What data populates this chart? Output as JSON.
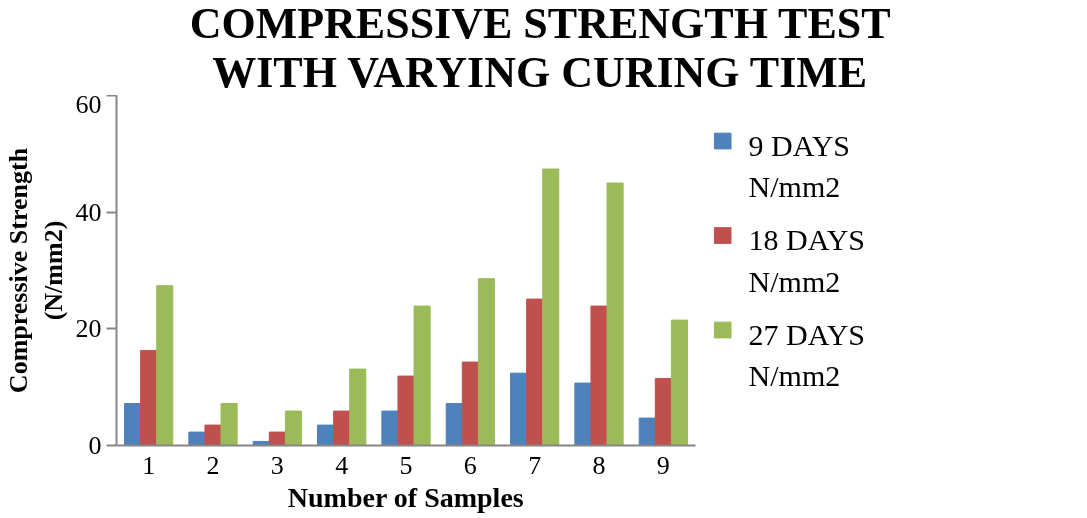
{
  "chart_data": {
    "type": "bar",
    "title": "COMPRESSIVE STRENGTH TEST WITH VARYING CURING TIME",
    "xlabel": "Number of Samples",
    "ylabel": "Compressive Strength (N/mm2)",
    "categories": [
      "1",
      "2",
      "3",
      "4",
      "5",
      "6",
      "7",
      "8",
      "9"
    ],
    "series": [
      {
        "name": "9 DAYS N/mm2",
        "color": "#4f81bd",
        "values": [
          7.2,
          2.3,
          0.7,
          3.5,
          5.9,
          7.2,
          12.4,
          10.7,
          4.7
        ]
      },
      {
        "name": "18 DAYS N/mm2",
        "color": "#c0504d",
        "values": [
          16.3,
          3.5,
          2.3,
          5.9,
          11.9,
          14.3,
          25.1,
          23.9,
          11.5
        ]
      },
      {
        "name": "27 DAYS N/mm2",
        "color": "#9bbb59",
        "values": [
          27.4,
          7.2,
          5.9,
          13.1,
          23.9,
          28.6,
          47.4,
          45.0,
          21.5
        ]
      }
    ],
    "ylim": [
      0,
      60
    ],
    "yticks": [
      0,
      20,
      40,
      60
    ],
    "grid": false,
    "legend": "right"
  }
}
